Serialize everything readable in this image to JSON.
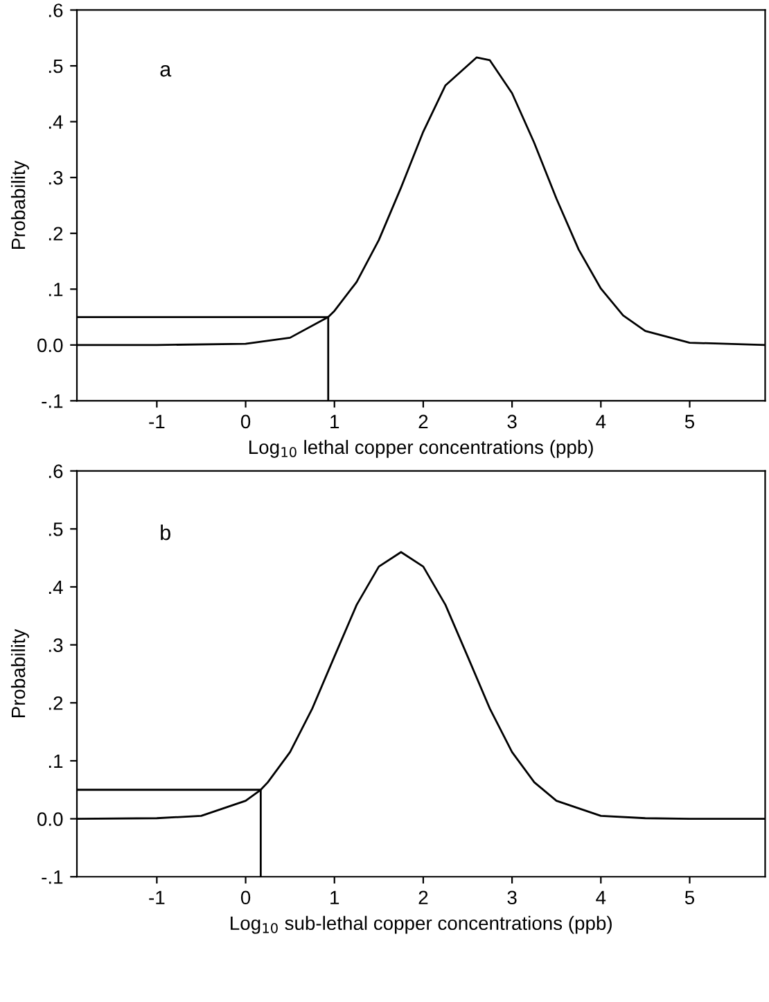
{
  "chart_data": [
    {
      "type": "line",
      "xlabel": "Log$_{10}$ lethal copper concentrations (ppb)",
      "ylabel": "Probability",
      "annotations": [
        "a"
      ],
      "xlim": [
        -1.9,
        5.85
      ],
      "ylim": [
        -0.1,
        0.6
      ],
      "xticks": [
        -1,
        0,
        1,
        2,
        3,
        4,
        5
      ],
      "yticks": [
        {
          "value": -0.1,
          "label": "-.1"
        },
        {
          "value": 0.0,
          "label": "0.0"
        },
        {
          "value": 0.1,
          "label": ".1"
        },
        {
          "value": 0.2,
          "label": ".2"
        },
        {
          "value": 0.3,
          "label": ".3"
        },
        {
          "value": 0.4,
          "label": ".4"
        },
        {
          "value": 0.5,
          "label": ".5"
        },
        {
          "value": 0.6,
          "label": ".6"
        }
      ],
      "series": [
        {
          "color": "#000000",
          "x": [
            -1.9,
            -1,
            0,
            0.5,
            0.93,
            1.0,
            1.25,
            1.5,
            1.75,
            2.0,
            2.25,
            2.6,
            2.75,
            3.0,
            3.25,
            3.5,
            3.75,
            4.0,
            4.25,
            4.5,
            5.0,
            5.85
          ],
          "values": [
            0,
            0,
            0.002,
            0.013,
            0.05,
            0.061,
            0.113,
            0.188,
            0.282,
            0.382,
            0.465,
            0.515,
            0.51,
            0.451,
            0.362,
            0.262,
            0.171,
            0.101,
            0.053,
            0.025,
            0.004,
            0
          ]
        },
        {
          "color": "#000000",
          "x": [
            -1.9,
            0.93,
            0.93
          ],
          "values": [
            0.05,
            0.05,
            -0.1
          ]
        }
      ]
    },
    {
      "type": "line",
      "xlabel": "Log$_{10}$ sub-lethal copper concentrations (ppb)",
      "ylabel": "Probability",
      "annotations": [
        "b"
      ],
      "xlim": [
        -1.9,
        5.85
      ],
      "ylim": [
        -0.1,
        0.6
      ],
      "xticks": [
        -1,
        0,
        1,
        2,
        3,
        4,
        5
      ],
      "yticks": [
        {
          "value": -0.1,
          "label": "-.1"
        },
        {
          "value": 0.0,
          "label": "0.0"
        },
        {
          "value": 0.1,
          "label": ".1"
        },
        {
          "value": 0.2,
          "label": ".2"
        },
        {
          "value": 0.3,
          "label": ".3"
        },
        {
          "value": 0.4,
          "label": ".4"
        },
        {
          "value": 0.5,
          "label": ".5"
        },
        {
          "value": 0.6,
          "label": ".6"
        }
      ],
      "series": [
        {
          "color": "#000000",
          "x": [
            -1.9,
            -1,
            -0.5,
            0,
            0.17,
            0.25,
            0.5,
            0.75,
            1.0,
            1.25,
            1.5,
            1.75,
            2.0,
            2.25,
            2.5,
            2.75,
            3.0,
            3.25,
            3.5,
            4.0,
            4.5,
            5.0,
            5.85
          ],
          "values": [
            0,
            0.001,
            0.005,
            0.031,
            0.05,
            0.063,
            0.115,
            0.19,
            0.28,
            0.369,
            0.435,
            0.46,
            0.435,
            0.369,
            0.28,
            0.19,
            0.115,
            0.063,
            0.031,
            0.005,
            0.001,
            0,
            0
          ]
        },
        {
          "color": "#000000",
          "x": [
            -1.9,
            0.17,
            0.17
          ],
          "values": [
            0.05,
            0.05,
            -0.1
          ]
        }
      ]
    }
  ]
}
